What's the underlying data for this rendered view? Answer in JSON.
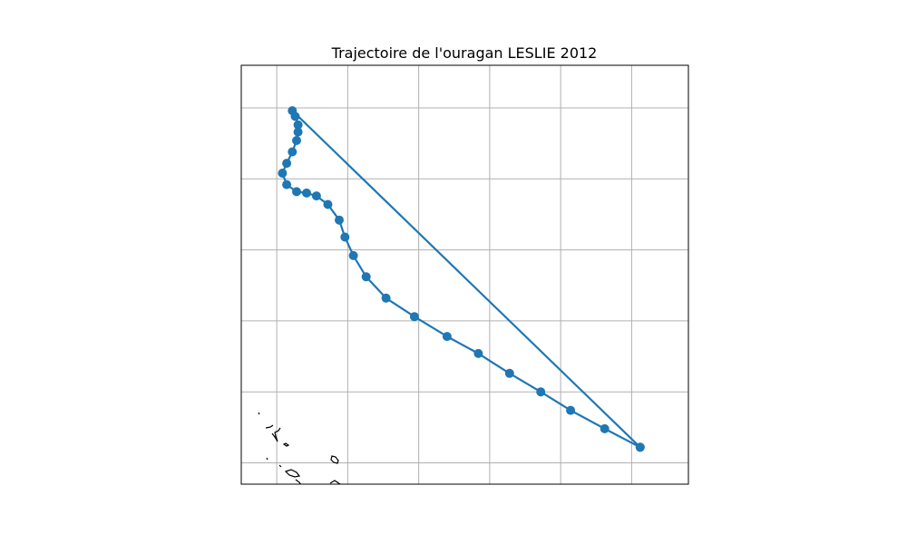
{
  "chart_data": {
    "type": "line",
    "title": "Trajectoire de l'ouragan LESLIE 2012",
    "xlabel": "",
    "ylabel": "",
    "grid": true,
    "x_unit": "longitude (deg)",
    "y_unit": "latitude (deg)",
    "xlim": [
      -68.5,
      -37.0
    ],
    "ylim": [
      8.5,
      38.0
    ],
    "grid_lon": [
      -66,
      -61,
      -56,
      -51,
      -46,
      -41,
      -36
    ],
    "grid_lat": [
      10,
      15,
      20,
      25,
      30,
      35
    ],
    "series": [
      {
        "name": "",
        "color": "#1f77b4",
        "marker": "circle",
        "points": [
          [
            -40.4,
            11.1
          ],
          [
            -42.9,
            12.4
          ],
          [
            -45.3,
            13.7
          ],
          [
            -47.4,
            15.0
          ],
          [
            -49.6,
            16.3
          ],
          [
            -51.8,
            17.7
          ],
          [
            -54.0,
            18.9
          ],
          [
            -56.3,
            20.3
          ],
          [
            -58.3,
            21.6
          ],
          [
            -59.7,
            23.1
          ],
          [
            -60.6,
            24.6
          ],
          [
            -61.2,
            25.9
          ],
          [
            -61.6,
            27.1
          ],
          [
            -62.4,
            28.2
          ],
          [
            -63.2,
            28.8
          ],
          [
            -63.9,
            29.0
          ],
          [
            -64.6,
            29.1
          ],
          [
            -65.3,
            29.6
          ],
          [
            -65.6,
            30.4
          ],
          [
            -65.3,
            31.1
          ],
          [
            -64.9,
            31.9
          ],
          [
            -64.6,
            32.7
          ],
          [
            -64.5,
            33.3
          ],
          [
            -64.5,
            33.8
          ],
          [
            -64.7,
            34.4
          ],
          [
            -64.9,
            34.8
          ],
          [
            -40.4,
            11.1
          ]
        ]
      }
    ]
  }
}
